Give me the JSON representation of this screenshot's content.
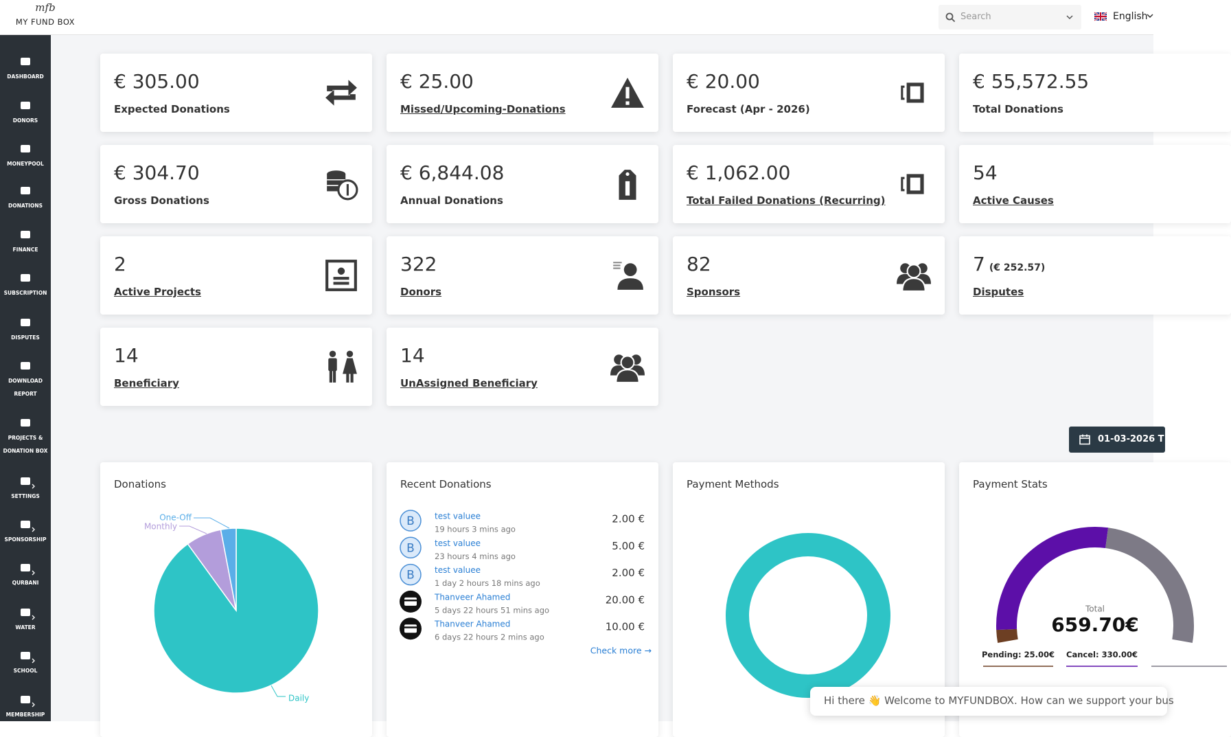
{
  "header": {
    "logo_script": "mfb",
    "logo": "MY FUND BOX",
    "search_placeholder": "Search",
    "language": "English"
  },
  "sidebar": [
    [
      "DASHBOARD"
    ],
    [
      "DONORS"
    ],
    [
      "MONEYPOOL"
    ],
    [
      "DONATIONS"
    ],
    [
      "FINANCE"
    ],
    [
      "SUBSCRIPTION"
    ],
    [
      "DISPUTES"
    ],
    [
      "DOWNLOAD",
      "REPORT"
    ],
    [
      "PROJECTS &",
      "DONATION BOX"
    ],
    [
      "SETTINGS"
    ],
    [
      "SPONSORSHIP"
    ],
    [
      "QURBANI"
    ],
    [
      "WATER"
    ],
    [
      "SCHOOL"
    ],
    [
      "MEMBERSHIP"
    ]
  ],
  "cards": [
    {
      "value": "€ 305.00",
      "label": "Expected Donations",
      "link": false
    },
    {
      "value": "€ 25.00",
      "label": "Missed/Upcoming-Donations",
      "link": true
    },
    {
      "value": "€ 20.00",
      "label": "Forecast (Apr - 2026)",
      "link": false
    },
    {
      "value": "€ 55,572.55",
      "label": "Total Donations",
      "link": false
    },
    {
      "value": "€ 304.70",
      "label": "Gross Donations",
      "link": false
    },
    {
      "value": "€ 6,844.08",
      "label": "Annual Donations",
      "link": false
    },
    {
      "value": "€ 1,062.00",
      "label": "Total Failed Donations (Recurring)",
      "link": true
    },
    {
      "value": "54",
      "label": "Active Causes",
      "link": true
    },
    {
      "value": "2",
      "label": "Active Projects",
      "link": true
    },
    {
      "value": "322",
      "label": "Donors",
      "link": true
    },
    {
      "value": "82",
      "label": "Sponsors",
      "link": true
    },
    {
      "value": "7",
      "note": "(€ 252.57)",
      "label": "Disputes",
      "link": true
    },
    {
      "value": "14",
      "label": "Beneficiary",
      "link": true
    },
    {
      "value": "14",
      "label": "UnAssigned Beneficiary",
      "link": true
    }
  ],
  "date_range": "01-03-2026 T",
  "donations_panel": {
    "title": "Donations",
    "chart": {
      "type": "pie",
      "categories": [
        "Daily",
        "Monthly",
        "One-Off"
      ],
      "values": [
        90,
        7,
        3
      ],
      "colors": [
        "#2ec4c6",
        "#b39ddb",
        "#5aaee8"
      ]
    }
  },
  "recent_donations": {
    "title": "Recent Donations",
    "items": [
      {
        "avatar": "B",
        "name": "test valuee",
        "time": "19 hours 3 mins ago",
        "amount": "2.00 €"
      },
      {
        "avatar": "B",
        "name": "test valuee",
        "time": "23 hours 4 mins ago",
        "amount": "5.00 €"
      },
      {
        "avatar": "B",
        "name": "test valuee",
        "time": "1 day 2 hours 18 mins ago",
        "amount": "2.00 €"
      },
      {
        "name": "Thanveer Ahamed",
        "time": "5 days 22 hours 51 mins ago",
        "amount": "20.00 €"
      },
      {
        "name": "Thanveer Ahamed",
        "time": "6 days 22 hours 2 mins ago",
        "amount": "10.00 €"
      }
    ],
    "more": "Check more →"
  },
  "payment_methods": {
    "title": "Payment Methods",
    "color": "#2ec4c6"
  },
  "payment_stats": {
    "title": "Payment Stats",
    "total_label": "Total",
    "total": "659.70€",
    "chart": {
      "type": "gauge",
      "segments": [
        {
          "name": "Pending:",
          "value": 25,
          "value_label": "25.00€",
          "color": "#6d3f23"
        },
        {
          "name": "Cancel:",
          "value": 330,
          "value_label": "330.00€",
          "color": "#5c0fa8"
        },
        {
          "value": 304.7,
          "color": "#7d7a86"
        }
      ]
    }
  },
  "chat": "Hi there 👋 Welcome to MYFUNDBOX. How can we support your bus"
}
